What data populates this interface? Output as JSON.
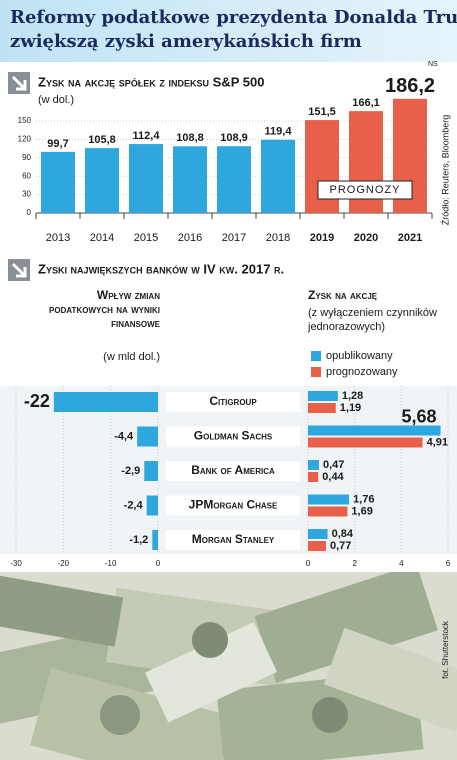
{
  "header": {
    "title": [
      "Reformy podatkowe prezydenta Donalda Trumpa",
      "zwiększą zyski amerykańskich firm"
    ],
    "tag": "NS"
  },
  "chart_data": [
    {
      "type": "bar",
      "title": "Zysk na akcję spółek z indeksu S&P 500",
      "unit": "(w dol.)",
      "categories": [
        "2013",
        "2014",
        "2015",
        "2016",
        "2017",
        "2018",
        "2019",
        "2020",
        "2021"
      ],
      "values": [
        99.7,
        105.8,
        112.4,
        108.8,
        108.9,
        119.4,
        151.5,
        166.1,
        186.2
      ],
      "value_labels": [
        "99,7",
        "105,8",
        "112,4",
        "108,8",
        "108,9",
        "119,4",
        "151,5",
        "166,1",
        "186,2"
      ],
      "colors": [
        "#2ea6de",
        "#2ea6de",
        "#2ea6de",
        "#2ea6de",
        "#2ea6de",
        "#2ea6de",
        "#e8604a",
        "#e8604a",
        "#e8604a"
      ],
      "ylim": [
        0,
        150
      ],
      "yticks": [
        0,
        30,
        60,
        90,
        120,
        150
      ],
      "grid": true,
      "annotation": "PROGNOZY",
      "source": "Źródło: Reuters, Bloomberg"
    },
    {
      "type": "barh-panels",
      "title": "Zyski największych banków w IV kw. 2017 r.",
      "categories": [
        "Citigroup",
        "Goldman Sachs",
        "Bank of America",
        "JPMorgan Chase",
        "Morgan Stanley"
      ],
      "panels": [
        {
          "title": "Wpływ zmian podatkowych na wyniki finansowe",
          "unit": "(w mld dol.)",
          "xlim": [
            -30,
            0
          ],
          "xticks": [
            -30,
            -20,
            -10,
            0
          ],
          "series": [
            {
              "color": "#2ea6de",
              "values": [
                -22,
                -4.4,
                -2.9,
                -2.4,
                -1.2
              ],
              "value_labels": [
                "-22",
                "-4,4",
                "-2,9",
                "-2,4",
                "-1,2"
              ]
            }
          ]
        },
        {
          "title": "Zysk na akcję",
          "unit": "(z wyłączeniem czynników jednorazowych)",
          "xlim": [
            0,
            6
          ],
          "xticks": [
            0,
            2,
            4,
            6
          ],
          "series": [
            {
              "name": "opublikowany",
              "color": "#2ea6de",
              "values": [
                1.28,
                5.68,
                0.47,
                1.76,
                0.84
              ],
              "value_labels": [
                "1,28",
                "5,68",
                "0,47",
                "1,76",
                "0,84"
              ]
            },
            {
              "name": "prognozowany",
              "color": "#e8604a",
              "values": [
                1.19,
                4.91,
                0.44,
                1.69,
                0.77
              ],
              "value_labels": [
                "1,19",
                "4,91",
                "0,44",
                "1,69",
                "0,77"
              ]
            }
          ]
        }
      ]
    }
  ],
  "photo_credit": "fot. Shutterstock"
}
